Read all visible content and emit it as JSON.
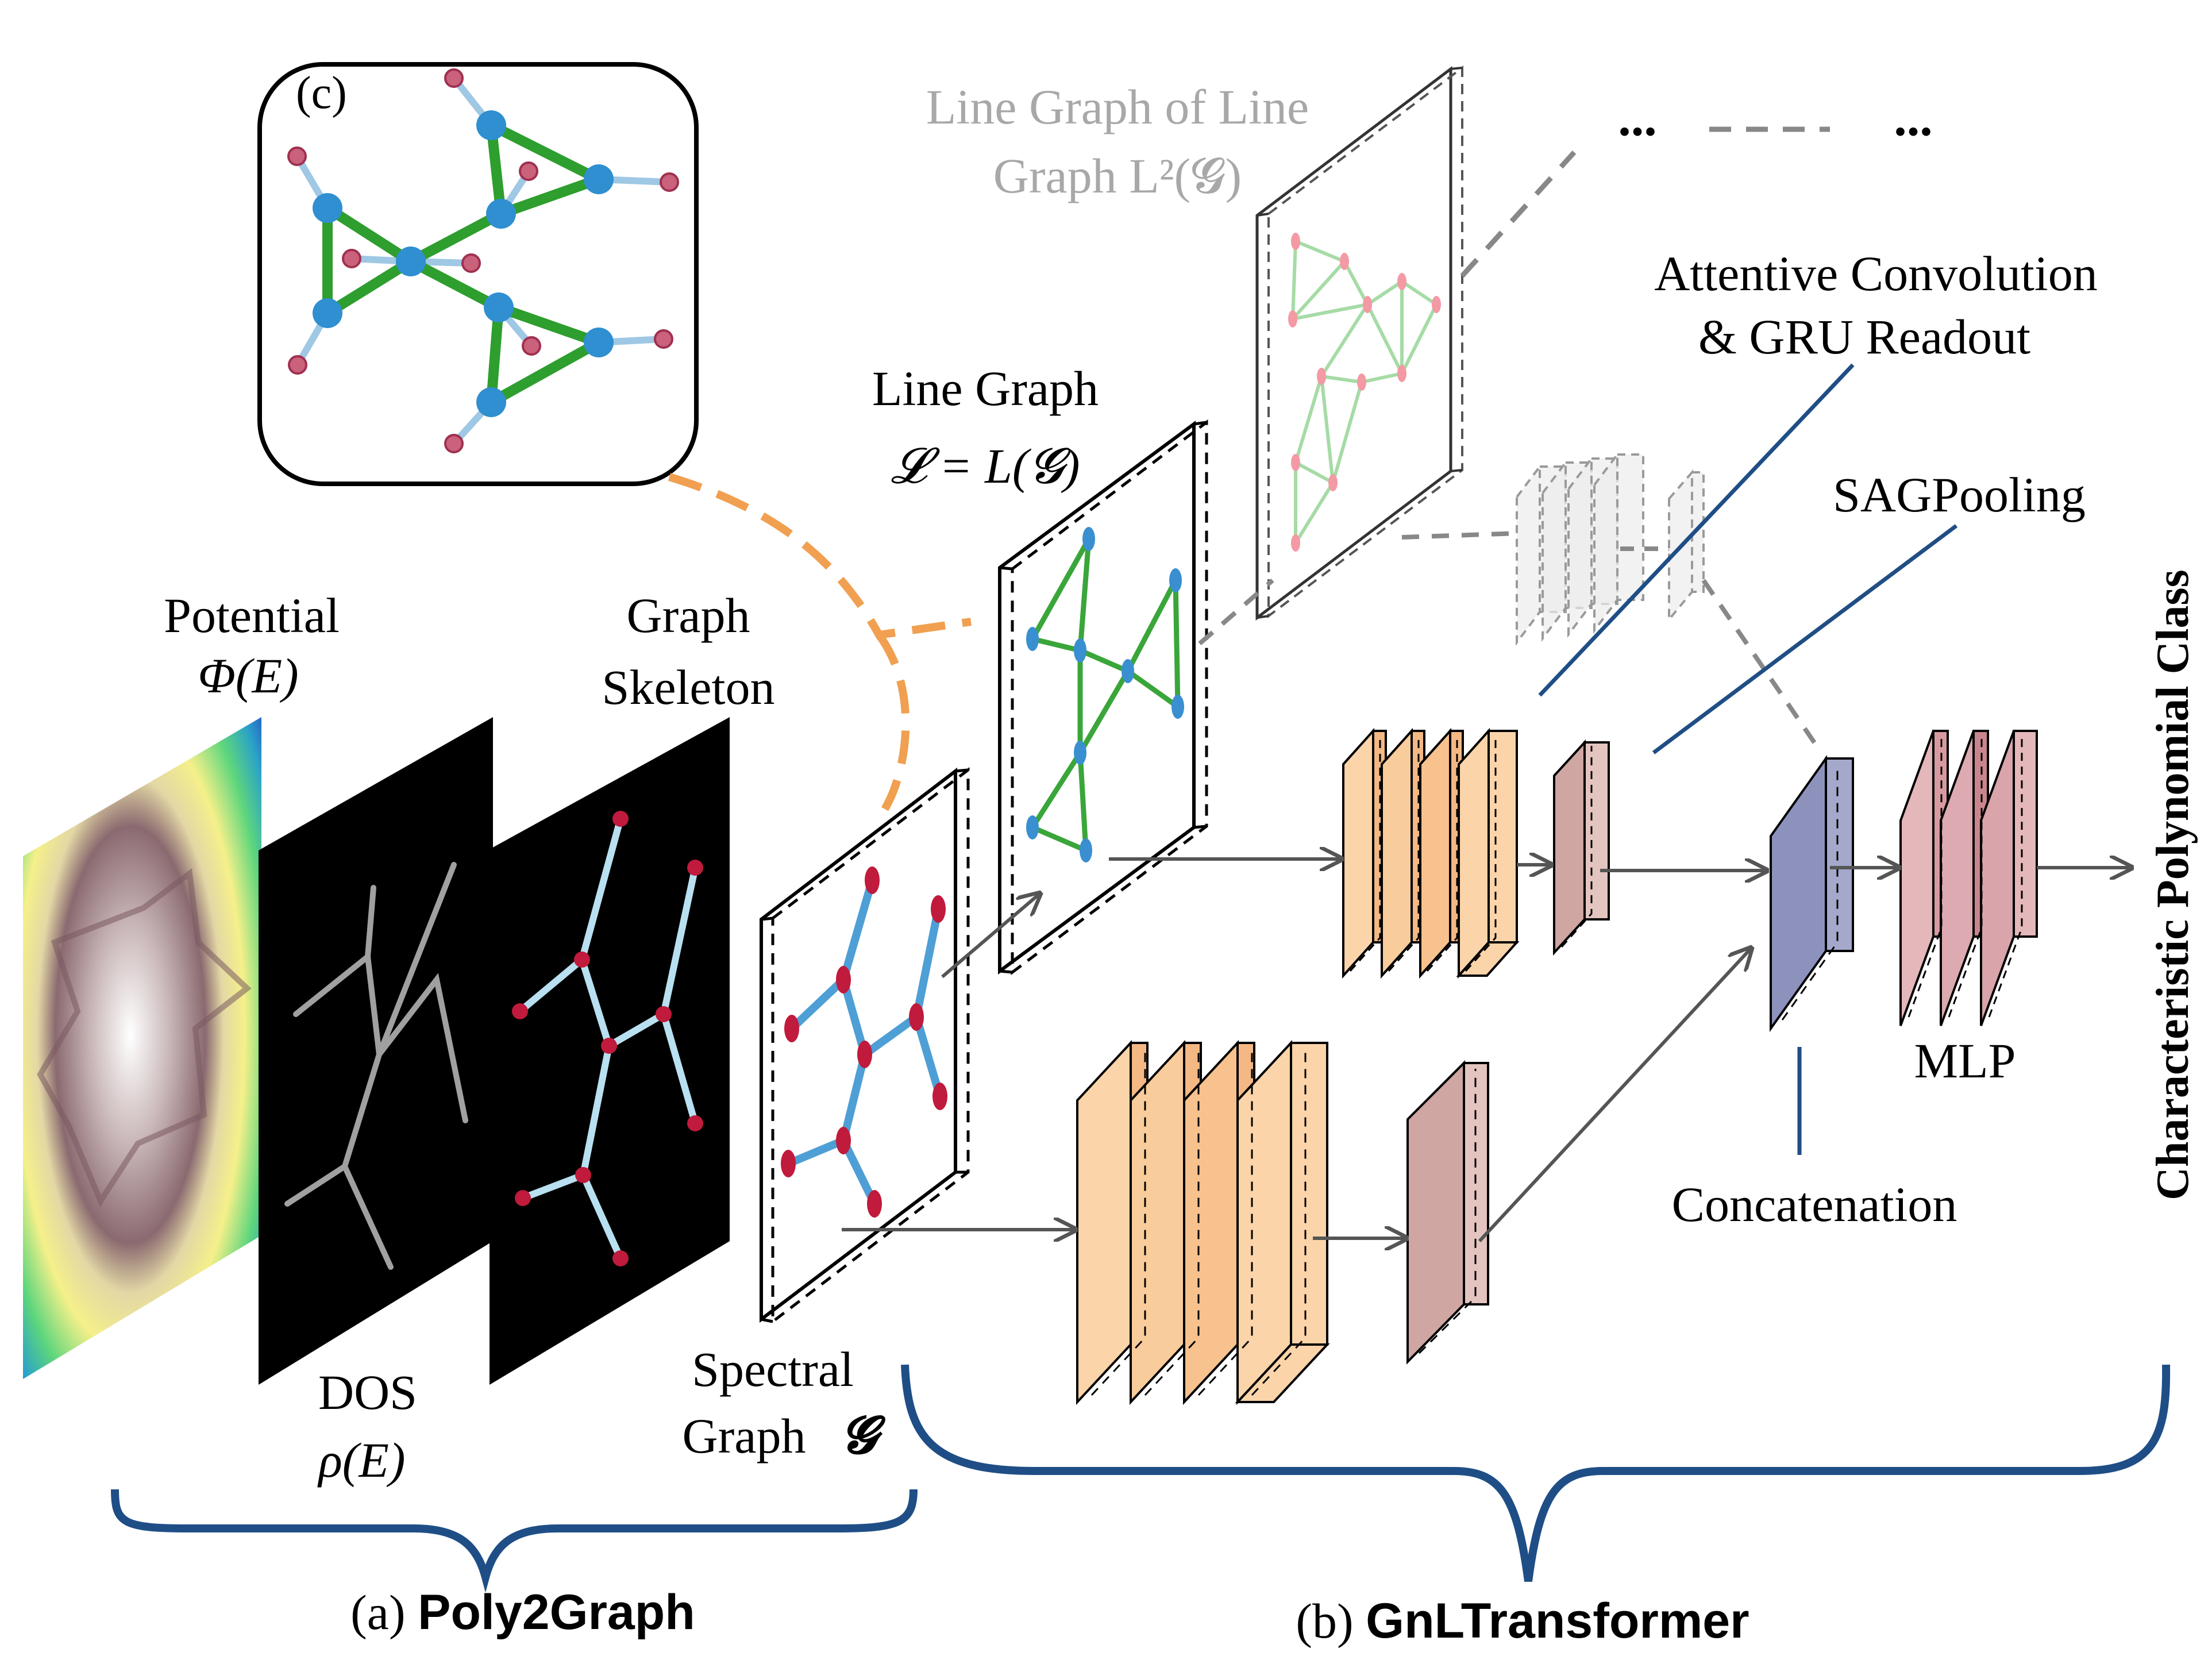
{
  "labels": {
    "panel_c": "(c)",
    "potential_line1": "Potential",
    "potential_line2": "Φ(E)",
    "dos_line1": "DOS",
    "dos_line2": "ρ(E)",
    "skeleton_line1": "Graph",
    "skeleton_line2": "Skeleton",
    "spectral_line1": "Spectral",
    "spectral_line2": "Graph",
    "spectral_symbol": "𝓖",
    "line_graph_line1": "Line Graph",
    "line_graph_line2": "𝓛 = L(𝓖)",
    "l2_line1": "Line Graph of Line",
    "l2_line2": "Graph  L²(𝓖)",
    "ellipsis_left": "...",
    "ellipsis_right": "...",
    "attentive_line1": "Attentive Convolution",
    "attentive_line2": "& GRU Readout",
    "sagpooling": "SAGPooling",
    "concatenation": "Concatenation",
    "mlp": "MLP",
    "output": "Characteristic Polynomial Class",
    "caption_a_prefix": "(a) ",
    "caption_a_name": "Poly2Graph",
    "caption_b_prefix": "(b) ",
    "caption_b_name": "GnLTransformer"
  },
  "colors": {
    "brace": "#1f4e86",
    "callout_line": "#1f4e86",
    "dashed_orange": "#f0a050",
    "arrow": "#555555",
    "gcn_block": "#f7c79a",
    "pool_block": "#d0aaa4",
    "concat_block": "#9a9ec2",
    "mlp_block": "#d9a6ab",
    "faded_block": "#e6e6e6",
    "graph_edge_blue": "#5aa6d8",
    "graph_node_red": "#c01a3c",
    "graph_edge_green": "#3aa63a",
    "graph_node_blue": "#3a8fd0",
    "l2_edge": "#9fd59f",
    "l2_node": "#f28f9a",
    "faded_text": "#a8a8a8"
  }
}
